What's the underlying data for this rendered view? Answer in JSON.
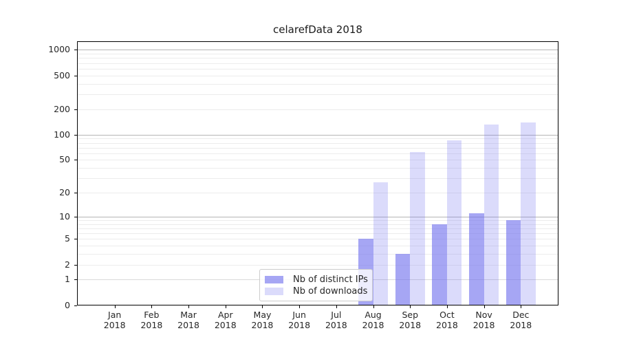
{
  "chart_data": {
    "type": "bar",
    "title": "celarefData 2018",
    "x": {
      "months": [
        "Jan",
        "Feb",
        "Mar",
        "Apr",
        "May",
        "Jun",
        "Jul",
        "Aug",
        "Sep",
        "Oct",
        "Nov",
        "Dec"
      ],
      "year": "2018"
    },
    "y_axis": {
      "scale": "log1p",
      "tick_values": [
        0,
        1,
        2,
        5,
        10,
        20,
        50,
        100,
        200,
        500,
        1000
      ],
      "range": [
        0,
        1250
      ]
    },
    "grid": {
      "major_values": [
        10,
        100,
        1000
      ],
      "unit_value": 1,
      "minor_values": [
        2,
        3,
        4,
        5,
        6,
        7,
        8,
        9,
        20,
        30,
        40,
        50,
        60,
        70,
        80,
        90,
        200,
        300,
        400,
        500,
        600,
        700,
        800,
        900
      ],
      "major_color": "#b4b4b4",
      "unit_color": "#d9d9d9",
      "minor_color": "#ececec"
    },
    "series": [
      {
        "name": "Nb of distinct IPs",
        "base_color": "#7070ee",
        "alpha": 0.62,
        "rendered_color": "#a9a9f4",
        "values": [
          0,
          0,
          0,
          0,
          0,
          0,
          0,
          5,
          3,
          8,
          11,
          9
        ]
      },
      {
        "name": "Nb of downloads",
        "base_color": "#7070ee",
        "alpha": 0.25,
        "rendered_color": "#dcdcfa",
        "values": [
          0,
          0,
          0,
          0,
          0,
          0,
          0,
          27,
          62,
          85,
          131,
          140
        ]
      }
    ],
    "legend": {
      "entries": [
        "Nb of distinct IPs",
        "Nb of downloads"
      ],
      "position": "lower center-left inside plot"
    }
  }
}
